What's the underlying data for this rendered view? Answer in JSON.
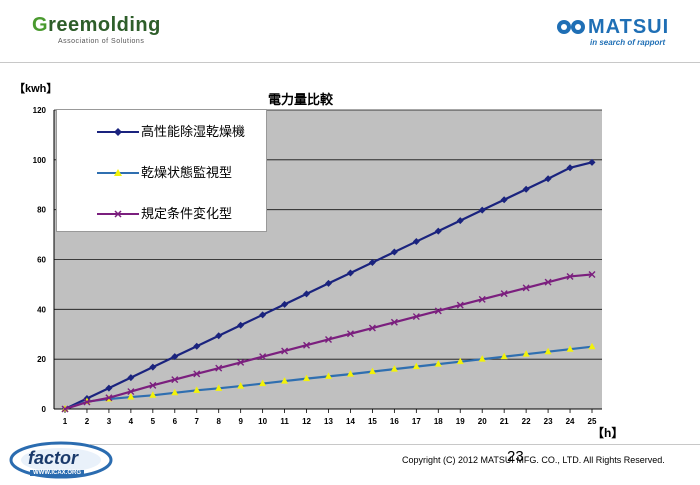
{
  "header": {
    "left_logo_brand_first": "G",
    "left_logo_brand_rest": "reemolding",
    "left_logo_tagline": "Association of Solutions",
    "right_logo_name": "MATSUI",
    "right_logo_sub": "in search of rapport"
  },
  "footer": {
    "copyright": "Copyright (C) 2012  MATSUI MFG. CO., LTD.  All Rights Reserved.",
    "page_number": "23",
    "bottom_logo_text": "factor",
    "bottom_logo_url": "WWW.ICAX.ORG"
  },
  "chart_data": {
    "type": "line",
    "title": "電力量比較",
    "ylabel": "【kwh】",
    "xlabel": "【h】",
    "x": [
      1,
      2,
      3,
      4,
      5,
      6,
      7,
      8,
      9,
      10,
      11,
      12,
      13,
      14,
      15,
      16,
      17,
      18,
      19,
      20,
      21,
      22,
      23,
      24,
      25
    ],
    "ylim": [
      0,
      120
    ],
    "yticks": [
      0,
      20,
      40,
      60,
      80,
      100,
      120
    ],
    "grid": true,
    "legend_position": "top-left",
    "series": [
      {
        "name": "高性能除湿乾燥機",
        "color": "#1a237e",
        "marker": "diamond",
        "values": [
          0,
          4.2,
          8.4,
          12.6,
          16.8,
          21,
          25.2,
          29.4,
          33.6,
          37.8,
          42,
          46.2,
          50.4,
          54.6,
          58.8,
          63,
          67.2,
          71.4,
          75.6,
          79.8,
          84,
          88.2,
          92.4,
          96.8,
          99
        ]
      },
      {
        "name": "乾燥状態監視型",
        "color": "#2f6fb0",
        "marker": "triangle",
        "values": [
          0,
          3,
          4,
          4.8,
          5.5,
          6.5,
          7.5,
          8.3,
          9.2,
          10.2,
          11.2,
          12.2,
          13.1,
          14,
          15,
          16,
          17,
          18,
          19,
          20,
          21,
          22,
          23,
          24,
          25
        ]
      },
      {
        "name": "規定条件変化型",
        "color": "#7b1f7e",
        "marker": "x",
        "values": [
          0,
          2.8,
          4.5,
          7,
          9.5,
          11.8,
          14.1,
          16.4,
          18.7,
          21,
          23.3,
          25.6,
          27.9,
          30.2,
          32.5,
          34.8,
          37.1,
          39.4,
          41.7,
          44,
          46.3,
          48.6,
          50.9,
          53.2,
          54
        ]
      }
    ]
  }
}
